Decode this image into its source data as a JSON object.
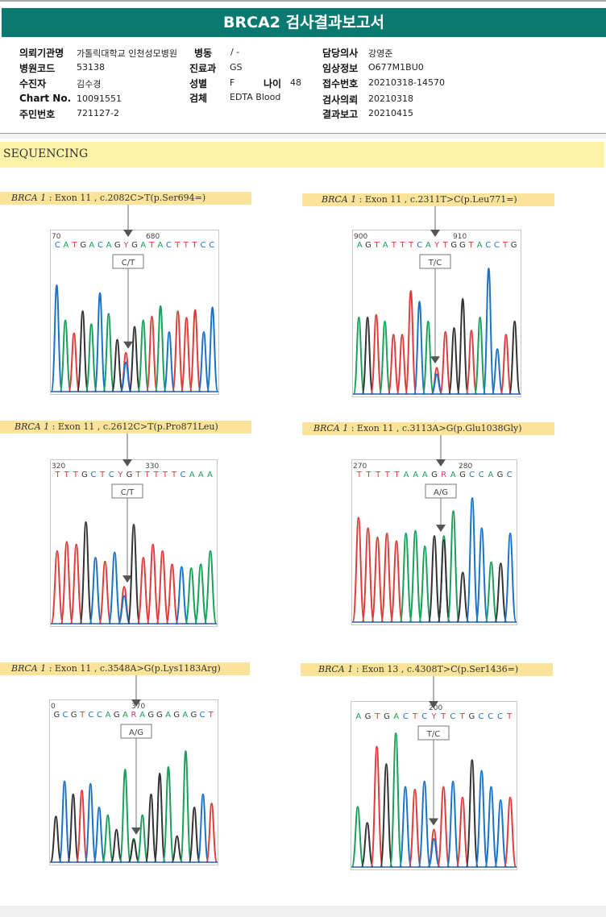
{
  "title": "BRCA2 검사결과보고서",
  "header": {
    "institution_label": "의뢰기관명",
    "institution_value": "가톨릭대학교 인천성모병원",
    "ward_label": "병동",
    "ward_value": "/ -",
    "doctor_label": "담당의사",
    "doctor_value": "강영준",
    "hospital_code_label": "병원코드",
    "hospital_code_value": "53138",
    "department_label": "진료과",
    "department_value": "GS",
    "clinical_info_label": "임상정보",
    "clinical_info_value": "O677M1BU0",
    "patient_label": "수진자",
    "patient_value": "김수경",
    "sex_label": "성별",
    "sex_value": "F",
    "age_label": "나이",
    "age_value": "48",
    "accession_label": "접수번호",
    "accession_value": "20210318-14570",
    "chart_label": "Chart No.",
    "chart_value": "10091551",
    "specimen_label": "검체",
    "specimen_value": "EDTA Blood",
    "request_label": "검사의뢰",
    "request_value": "20210318",
    "id_label": "주민번호",
    "id_value": "721127-2",
    "report_label": "결과보고",
    "report_value": "20210415"
  },
  "section_title": "SEQUENCING",
  "colors": {
    "A": "#1aa05a",
    "C": "#1a73c8",
    "G": "#333333",
    "T": "#e03c3c",
    "Y": "#d0407a",
    "R": "#d0407a",
    "titlebar": "#0a7a70",
    "caption": "#fbe49a"
  },
  "panels": [
    {
      "gene": "BRCA 1",
      "variant": " : Exon 11 , c.2082C>T(p.Ser694=)",
      "tick_left": "70",
      "tick_right": "680",
      "sequence": "CATGACAGYGATACTTTCC",
      "call": "C/T",
      "peaks": [
        [
          "C",
          0.82
        ],
        [
          "A",
          0.55
        ],
        [
          "T",
          0.45
        ],
        [
          "G",
          0.62
        ],
        [
          "A",
          0.52
        ],
        [
          "C",
          0.76
        ],
        [
          "A",
          0.6
        ],
        [
          "G",
          0.4
        ],
        [
          "Y",
          0.3
        ],
        [
          "G",
          0.5
        ],
        [
          "A",
          0.55
        ],
        [
          "T",
          0.58
        ],
        [
          "A",
          0.66
        ],
        [
          "C",
          0.46
        ],
        [
          "T",
          0.62
        ],
        [
          "T",
          0.57
        ],
        [
          "T",
          0.63
        ],
        [
          "C",
          0.46
        ],
        [
          "C",
          0.65
        ]
      ]
    },
    {
      "gene": "BRCA 1",
      "variant": " : Exon 11 , c.2311T>C(p.Leu771=)",
      "tick_left": "900",
      "tick_right": "910",
      "sequence": "AGTATTTCAYTGGTACCTG",
      "call": "T/C",
      "peaks": [
        [
          "A",
          0.58
        ],
        [
          "G",
          0.58
        ],
        [
          "T",
          0.6
        ],
        [
          "A",
          0.55
        ],
        [
          "T",
          0.45
        ],
        [
          "T",
          0.45
        ],
        [
          "T",
          0.78
        ],
        [
          "C",
          0.7
        ],
        [
          "A",
          0.55
        ],
        [
          "Y",
          0.2
        ],
        [
          "T",
          0.47
        ],
        [
          "G",
          0.5
        ],
        [
          "G",
          0.72
        ],
        [
          "T",
          0.48
        ],
        [
          "A",
          0.58
        ],
        [
          "C",
          0.95
        ],
        [
          "C",
          0.34
        ],
        [
          "T",
          0.45
        ],
        [
          "G",
          0.55
        ]
      ]
    },
    {
      "gene": "BRCA 1",
      "variant": " : Exon 11 , c.2612C>T(p.Pro871Leu)",
      "tick_left": "320",
      "tick_right": "330",
      "sequence": "TTTGCTCYGTTTTTCAAA",
      "call": "C/T",
      "peaks": [
        [
          "T",
          0.55
        ],
        [
          "T",
          0.62
        ],
        [
          "T",
          0.6
        ],
        [
          "G",
          0.77
        ],
        [
          "C",
          0.5
        ],
        [
          "T",
          0.47
        ],
        [
          "C",
          0.54
        ],
        [
          "Y",
          0.28
        ],
        [
          "G",
          0.75
        ],
        [
          "T",
          0.5
        ],
        [
          "T",
          0.6
        ],
        [
          "T",
          0.55
        ],
        [
          "T",
          0.45
        ],
        [
          "C",
          0.43
        ],
        [
          "A",
          0.42
        ],
        [
          "A",
          0.45
        ],
        [
          "A",
          0.55
        ]
      ]
    },
    {
      "gene": "BRCA 1",
      "variant": " : Exon 11 , c.3113A>G(p.Glu1038Gly)",
      "tick_left": "270",
      "tick_right": "280",
      "sequence": "TTTTTAAAGRAGCCAGC",
      "call": "A/G",
      "peaks": [
        [
          "T",
          0.8
        ],
        [
          "T",
          0.72
        ],
        [
          "T",
          0.65
        ],
        [
          "T",
          0.68
        ],
        [
          "T",
          0.62
        ],
        [
          "A",
          0.68
        ],
        [
          "A",
          0.7
        ],
        [
          "A",
          0.58
        ],
        [
          "G",
          0.66
        ],
        [
          "R",
          0.66
        ],
        [
          "A",
          0.85
        ],
        [
          "G",
          0.38
        ],
        [
          "C",
          0.95
        ],
        [
          "C",
          0.72
        ],
        [
          "A",
          0.46
        ],
        [
          "G",
          0.45
        ],
        [
          "C",
          0.68
        ]
      ]
    },
    {
      "gene": "BRCA 1",
      "variant": " : Exon 11 , c.3548A>G(p.Lys1183Arg)",
      "tick_left": "0",
      "tick_right": "370",
      "sequence": "GCGTCCAGARAGGAGAGCT",
      "call": "A/G",
      "peaks": [
        [
          "G",
          0.35
        ],
        [
          "C",
          0.62
        ],
        [
          "G",
          0.52
        ],
        [
          "T",
          0.55
        ],
        [
          "C",
          0.6
        ],
        [
          "C",
          0.42
        ],
        [
          "A",
          0.36
        ],
        [
          "G",
          0.25
        ],
        [
          "A",
          0.71
        ],
        [
          "R",
          0.18
        ],
        [
          "A",
          0.36
        ],
        [
          "G",
          0.52
        ],
        [
          "G",
          0.68
        ],
        [
          "A",
          0.73
        ],
        [
          "G",
          0.2
        ],
        [
          "A",
          0.85
        ],
        [
          "G",
          0.42
        ],
        [
          "C",
          0.52
        ],
        [
          "T",
          0.45
        ]
      ]
    },
    {
      "gene": "BRCA 1",
      "variant": " : Exon 13 , c.4308T>C(p.Ser1436=)",
      "tick_left": "",
      "tick_right": "200",
      "sequence": "AGTGACTCYTCTGCCCT",
      "call": "T/C",
      "peaks": [
        [
          "A",
          0.45
        ],
        [
          "G",
          0.33
        ],
        [
          "T",
          0.9
        ],
        [
          "G",
          0.77
        ],
        [
          "A",
          1.0
        ],
        [
          "C",
          0.6
        ],
        [
          "T",
          0.58
        ],
        [
          "C",
          0.64
        ],
        [
          "Y",
          0.28
        ],
        [
          "T",
          0.6
        ],
        [
          "C",
          0.64
        ],
        [
          "T",
          0.52
        ],
        [
          "G",
          0.8
        ],
        [
          "C",
          0.72
        ],
        [
          "C",
          0.6
        ],
        [
          "C",
          0.5
        ],
        [
          "T",
          0.52
        ]
      ]
    }
  ]
}
